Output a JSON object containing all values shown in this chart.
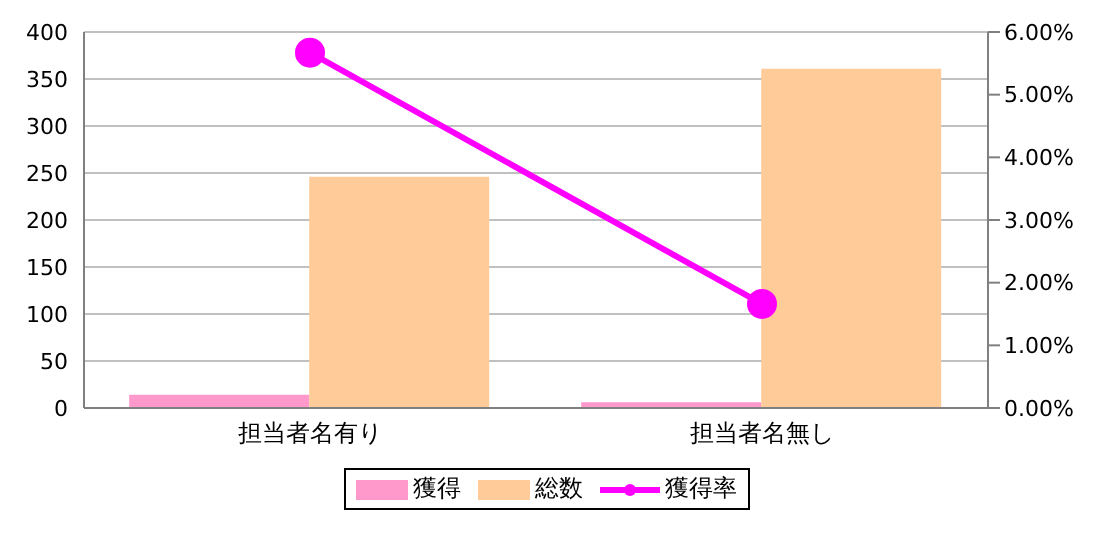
{
  "chart_data": {
    "type": "bar",
    "categories": [
      "担当者名有り",
      "担当者名無し"
    ],
    "series": [
      {
        "name": "獲得",
        "color": "#ff99cc",
        "values": [
          14,
          6
        ]
      },
      {
        "name": "総数",
        "color": "#ffcc99",
        "values": [
          246,
          361
        ]
      },
      {
        "name": "獲得率",
        "type": "line",
        "axis": "y2",
        "color": "#ff00ff",
        "values": [
          5.67,
          1.66
        ]
      }
    ],
    "ylim": [
      0,
      400
    ],
    "yticks": [
      0,
      50,
      100,
      150,
      200,
      250,
      300,
      350,
      400
    ],
    "y2lim": [
      0,
      6
    ],
    "y2ticks": [
      {
        "value": 0,
        "label": "0.00%"
      },
      {
        "value": 1,
        "label": "1.00%"
      },
      {
        "value": 2,
        "label": "2.00%"
      },
      {
        "value": 3,
        "label": "3.00%"
      },
      {
        "value": 4,
        "label": "4.00%"
      },
      {
        "value": 5,
        "label": "5.00%"
      },
      {
        "value": 6,
        "label": "6.00%"
      }
    ],
    "grid": "y",
    "legend": "bottom",
    "marker": "circle",
    "line_style": "solid"
  }
}
